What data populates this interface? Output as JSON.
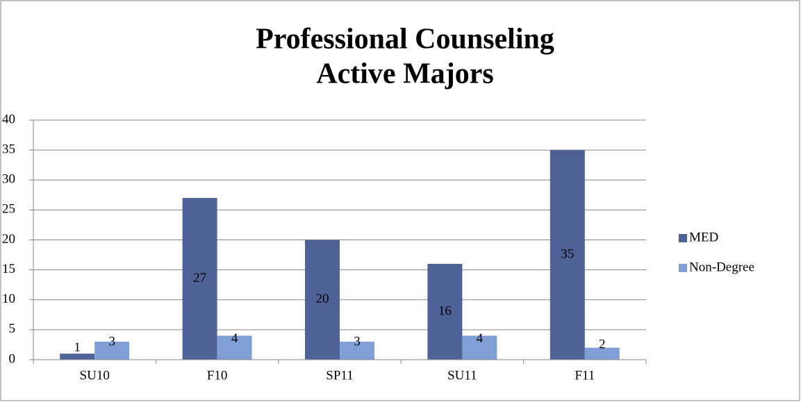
{
  "chart_data": {
    "type": "bar",
    "title": [
      "Professional Counseling",
      "Active Majors"
    ],
    "categories": [
      "SU10",
      "F10",
      "SP11",
      "SU11",
      "F11"
    ],
    "series": [
      {
        "name": "MED",
        "color": "#4f6298",
        "values": [
          1,
          27,
          20,
          16,
          35
        ]
      },
      {
        "name": "Non-Degree",
        "color": "#7f9fd6",
        "values": [
          3,
          4,
          3,
          4,
          2
        ]
      }
    ],
    "ylim": [
      0,
      40
    ],
    "yticks": [
      0,
      5,
      10,
      15,
      20,
      25,
      30,
      35,
      40
    ],
    "grid": true,
    "legend": "right"
  }
}
